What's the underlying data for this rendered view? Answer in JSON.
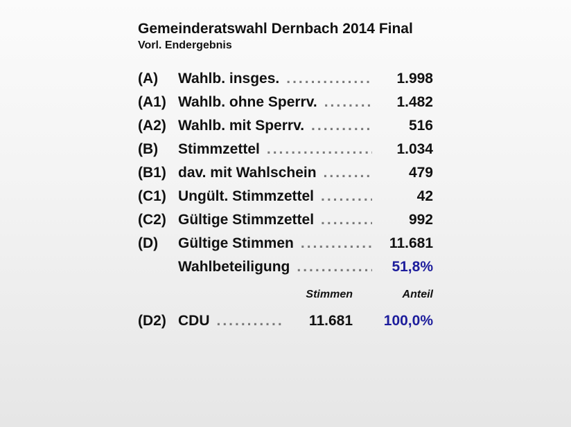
{
  "header": {
    "title": "Gemeinderatswahl Dernbach 2014 Final",
    "subtitle": "Vorl. Endergebnis"
  },
  "stats": [
    {
      "code": "(A)",
      "label": "Wahlb. insges.",
      "value": "1.998",
      "accent": false
    },
    {
      "code": "(A1)",
      "label": "Wahlb. ohne Sperrv.",
      "value": "1.482",
      "accent": false
    },
    {
      "code": "(A2)",
      "label": "Wahlb. mit Sperrv.",
      "value": "516",
      "accent": false
    },
    {
      "code": "(B)",
      "label": "Stimmzettel",
      "value": "1.034",
      "accent": false
    },
    {
      "code": "(B1)",
      "label": "dav. mit Wahlschein",
      "value": "479",
      "accent": false
    },
    {
      "code": "(C1)",
      "label": "Ungült. Stimmzettel",
      "value": "42",
      "accent": false
    },
    {
      "code": "(C2)",
      "label": "Gültige Stimmzettel",
      "value": "992",
      "accent": false
    },
    {
      "code": "(D)",
      "label": "Gültige Stimmen",
      "value": "11.681",
      "accent": false
    },
    {
      "code": "",
      "label": "Wahlbeteiligung",
      "value": "51,8%",
      "accent": true
    }
  ],
  "columns": {
    "votes": "Stimmen",
    "share": "Anteil"
  },
  "parties": [
    {
      "code": "(D2)",
      "label": "CDU",
      "votes": "11.681",
      "share": "100,0%"
    }
  ],
  "colors": {
    "accent": "#1d1d9c",
    "text": "#111111",
    "leader_dots": "#7a7a7a"
  }
}
